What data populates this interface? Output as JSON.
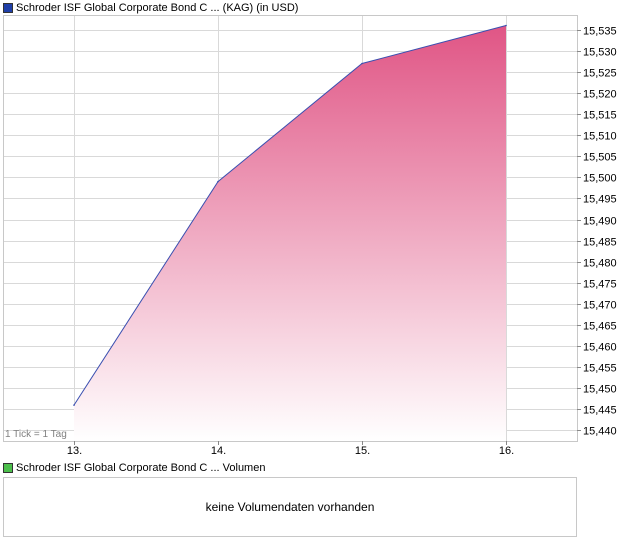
{
  "colors": {
    "price_swatch": "#1f3fa8",
    "volume_swatch": "#4cbf4c",
    "line": "#3a4fb0",
    "fill_top": "#e05585",
    "fill_bottom": "#ffffff",
    "grid": "#d9d9d9"
  },
  "legend": {
    "price": "Schroder ISF Global Corporate Bond C ... (KAG) (in USD)",
    "volume": "Schroder ISF Global Corporate Bond C ... Volumen"
  },
  "tick_note": "1 Tick = 1 Tag",
  "volume_message": "keine Volumendaten vorhanden",
  "chart_data": {
    "type": "area",
    "x_labels": [
      "13.",
      "14.",
      "15.",
      "16."
    ],
    "series": [
      {
        "values": [
          15.446,
          15.499,
          15.527,
          15.536
        ]
      }
    ],
    "y_ticks": [
      "15,535",
      "15,530",
      "15,525",
      "15,520",
      "15,515",
      "15,510",
      "15,505",
      "15,500",
      "15,495",
      "15,490",
      "15,485",
      "15,480",
      "15,475",
      "15,470",
      "15,465",
      "15,460",
      "15,455",
      "15,450",
      "15,445",
      "15,440"
    ],
    "ylim": [
      15.4375,
      15.5385
    ],
    "y_axis_side": "right",
    "grid": true
  }
}
